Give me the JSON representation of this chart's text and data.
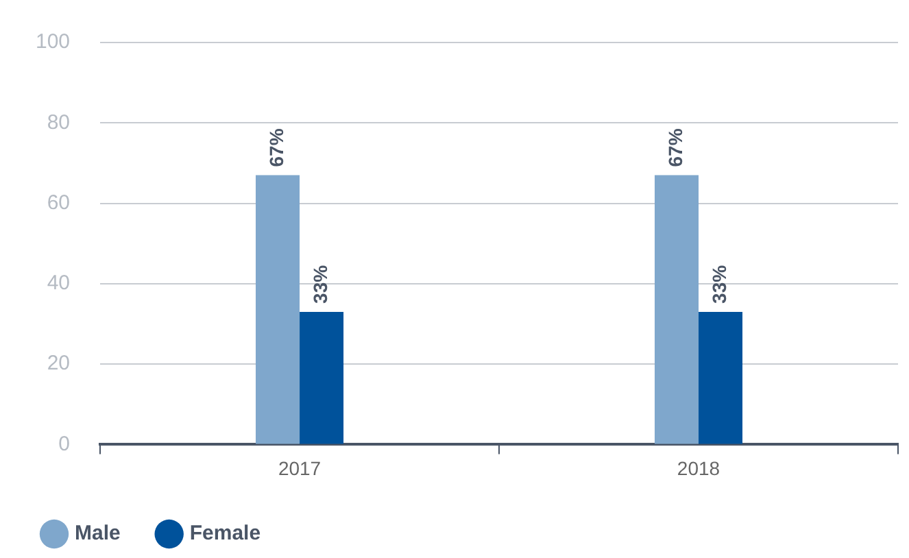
{
  "chart_data": {
    "type": "bar",
    "categories": [
      "2017",
      "2018"
    ],
    "series": [
      {
        "name": "Male",
        "color": "#7fa7cc",
        "values": [
          67,
          67
        ],
        "value_labels": [
          "67%",
          "67%"
        ]
      },
      {
        "name": "Female",
        "color": "#00529b",
        "values": [
          33,
          33
        ],
        "value_labels": [
          "33%",
          "33%"
        ]
      }
    ],
    "ylim": [
      0,
      100
    ],
    "yticks": [
      0,
      20,
      40,
      60,
      80,
      100
    ],
    "grid": "y",
    "legend": "bottom left"
  }
}
